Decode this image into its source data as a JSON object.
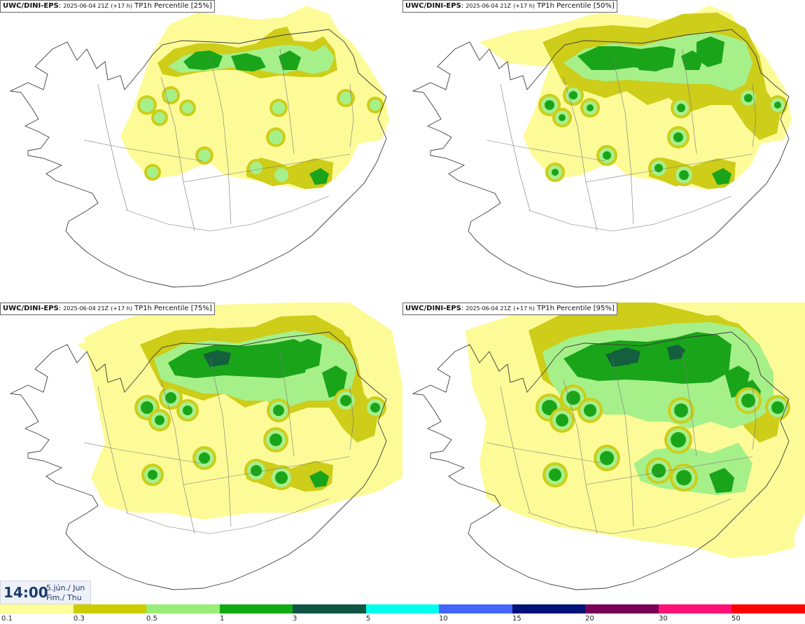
{
  "panels": [
    {
      "model": "UWC/DINI-EPS",
      "run": "2025-06-04 21Z",
      "lead": "(+17 h)",
      "field": "TP1h Percentile",
      "percentile": "[25%]",
      "level": 0
    },
    {
      "model": "UWC/DINI-EPS",
      "run": "2025-06-04 21Z",
      "lead": "(+17 h)",
      "field": "TP1h Percentile",
      "percentile": "[50%]",
      "level": 1
    },
    {
      "model": "UWC/DINI-EPS",
      "run": "2025-06-04 21Z",
      "lead": "(+17 h)",
      "field": "TP1h Percentile",
      "percentile": "[75%]",
      "level": 2
    },
    {
      "model": "UWC/DINI-EPS",
      "run": "2025-06-04 21Z",
      "lead": "(+17 h)",
      "field": "TP1h Percentile",
      "percentile": "[95%]",
      "level": 3
    }
  ],
  "timestamp": {
    "time": "14:00",
    "date_line1": "5.jún./ Jun",
    "date_line2": "Fim./ Thu"
  },
  "legend": {
    "ticks": [
      "0.1",
      "0.3",
      "0.5",
      "1",
      "3",
      "5",
      "10",
      "15",
      "20",
      "30",
      "50"
    ],
    "colors": [
      "#ffff99",
      "#cccc00",
      "#99ee77",
      "#11aa11",
      "#115544",
      "#00ffee",
      "#4466ff",
      "#001177",
      "#770055",
      "#ff1177",
      "#ff0000"
    ]
  },
  "colors": {
    "light_yellow": "#fdfb97",
    "olive": "#cdcd1a",
    "light_green": "#a6f08a",
    "green": "#1aa41a",
    "dark_green": "#14603e",
    "outline": "#3c3c3c"
  }
}
